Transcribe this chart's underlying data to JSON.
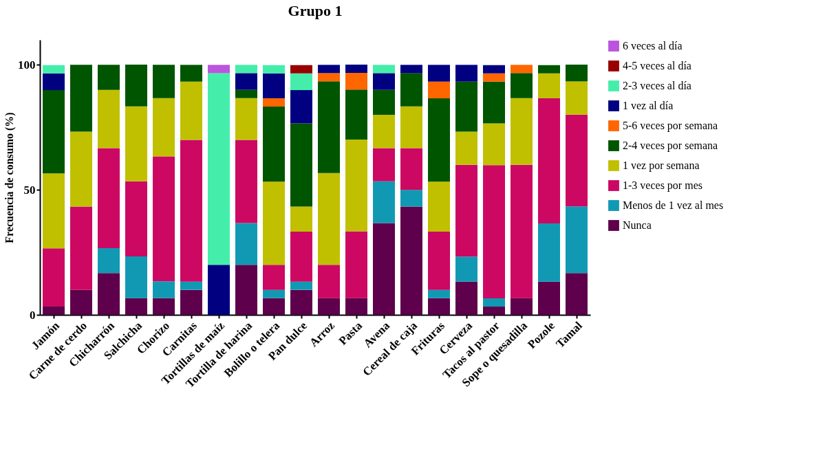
{
  "chart_data": {
    "type": "bar",
    "title": "Grupo 1",
    "ylabel": "Frecuencia de consumo (%)",
    "stacked": true,
    "legend": "right",
    "grid": false,
    "categories": [
      "Jamón",
      "Carne de cerdo",
      "Chicharrón",
      "Salchicha",
      "Chorizo",
      "Carnitas",
      "Tortillas de maíz",
      "Tortilla de harina",
      "Bolillo o telera",
      "Pan dulce",
      "Arroz",
      "Pasta",
      "Avena",
      "Cereal de caja",
      "Frituras",
      "Cerveza",
      "Tacos al pastor",
      "Sope o quesadilla",
      "Pozole",
      "Tamal"
    ],
    "ylim": [
      0,
      110
    ],
    "yticks": [
      0,
      50,
      100
    ],
    "series": [
      {
        "name": "Nunca",
        "color": "#5e004b",
        "values": [
          3.3,
          10,
          16.7,
          6.7,
          6.7,
          10,
          0,
          20,
          6.7,
          10,
          6.7,
          6.7,
          36.7,
          43.3,
          6.7,
          13.3,
          3.3,
          6.7,
          13.3,
          16.7
        ]
      },
      {
        "name": "Menos de 1 vez al mes",
        "color": "#1199b4",
        "values": [
          0,
          0,
          10,
          16.7,
          6.7,
          3.3,
          0,
          16.7,
          3.3,
          3.3,
          0,
          0,
          16.7,
          6.7,
          3.3,
          10,
          3.3,
          0,
          23.3,
          26.7
        ]
      },
      {
        "name": "1-3 veces por mes",
        "color": "#cc0863",
        "values": [
          23.3,
          33.3,
          40,
          30,
          50,
          56.7,
          0,
          33.3,
          10,
          20,
          13.3,
          26.7,
          13.3,
          16.7,
          23.3,
          36.7,
          53.3,
          53.3,
          50,
          36.7
        ]
      },
      {
        "name": "1 vez por semana",
        "color": "#c0c000",
        "values": [
          30,
          30,
          23.3,
          30,
          23.3,
          23.3,
          0,
          16.7,
          33.3,
          10,
          36.7,
          36.7,
          13.3,
          16.7,
          20,
          13.3,
          16.7,
          26.7,
          10,
          13.3
        ]
      },
      {
        "name": "2-4 veces por semana",
        "color": "#005500",
        "values": [
          33.3,
          26.7,
          10,
          16.7,
          13.3,
          6.7,
          0,
          3.3,
          30,
          33.3,
          36.7,
          20,
          10,
          13.3,
          33.3,
          20,
          16.7,
          10,
          3.3,
          6.7
        ]
      },
      {
        "name": "5-6 veces por semana",
        "color": "#ff6600",
        "values": [
          0,
          0,
          0,
          0,
          0,
          0,
          0,
          0,
          3.3,
          0,
          3.3,
          6.7,
          0,
          0,
          6.7,
          0,
          3.3,
          3.3,
          0,
          0
        ]
      },
      {
        "name": "1 vez al día",
        "color": "#000080",
        "values": [
          6.7,
          0,
          0,
          0,
          0,
          0,
          20,
          6.7,
          10,
          13.3,
          3.3,
          3.3,
          6.7,
          3.3,
          6.7,
          6.7,
          3.3,
          0,
          0,
          0
        ]
      },
      {
        "name": "2-3 veces al día",
        "color": "#44eeaa",
        "values": [
          3.3,
          0,
          0,
          0,
          0,
          0,
          76.7,
          3.3,
          3.3,
          6.7,
          0,
          0,
          3.3,
          0,
          0,
          0,
          0,
          0,
          0,
          0
        ]
      },
      {
        "name": "4-5 veces al día",
        "color": "#990000",
        "values": [
          0,
          0,
          0,
          0,
          0,
          0,
          0,
          0,
          0,
          3.3,
          0,
          0,
          0,
          0,
          0,
          0,
          0,
          0,
          0,
          0
        ]
      },
      {
        "name": "6 veces al día",
        "color": "#bb55dd",
        "values": [
          0,
          0,
          0,
          0,
          0,
          0,
          3.3,
          0,
          0,
          0,
          0,
          0,
          0,
          0,
          0,
          0,
          0,
          0,
          0,
          0
        ]
      }
    ]
  }
}
